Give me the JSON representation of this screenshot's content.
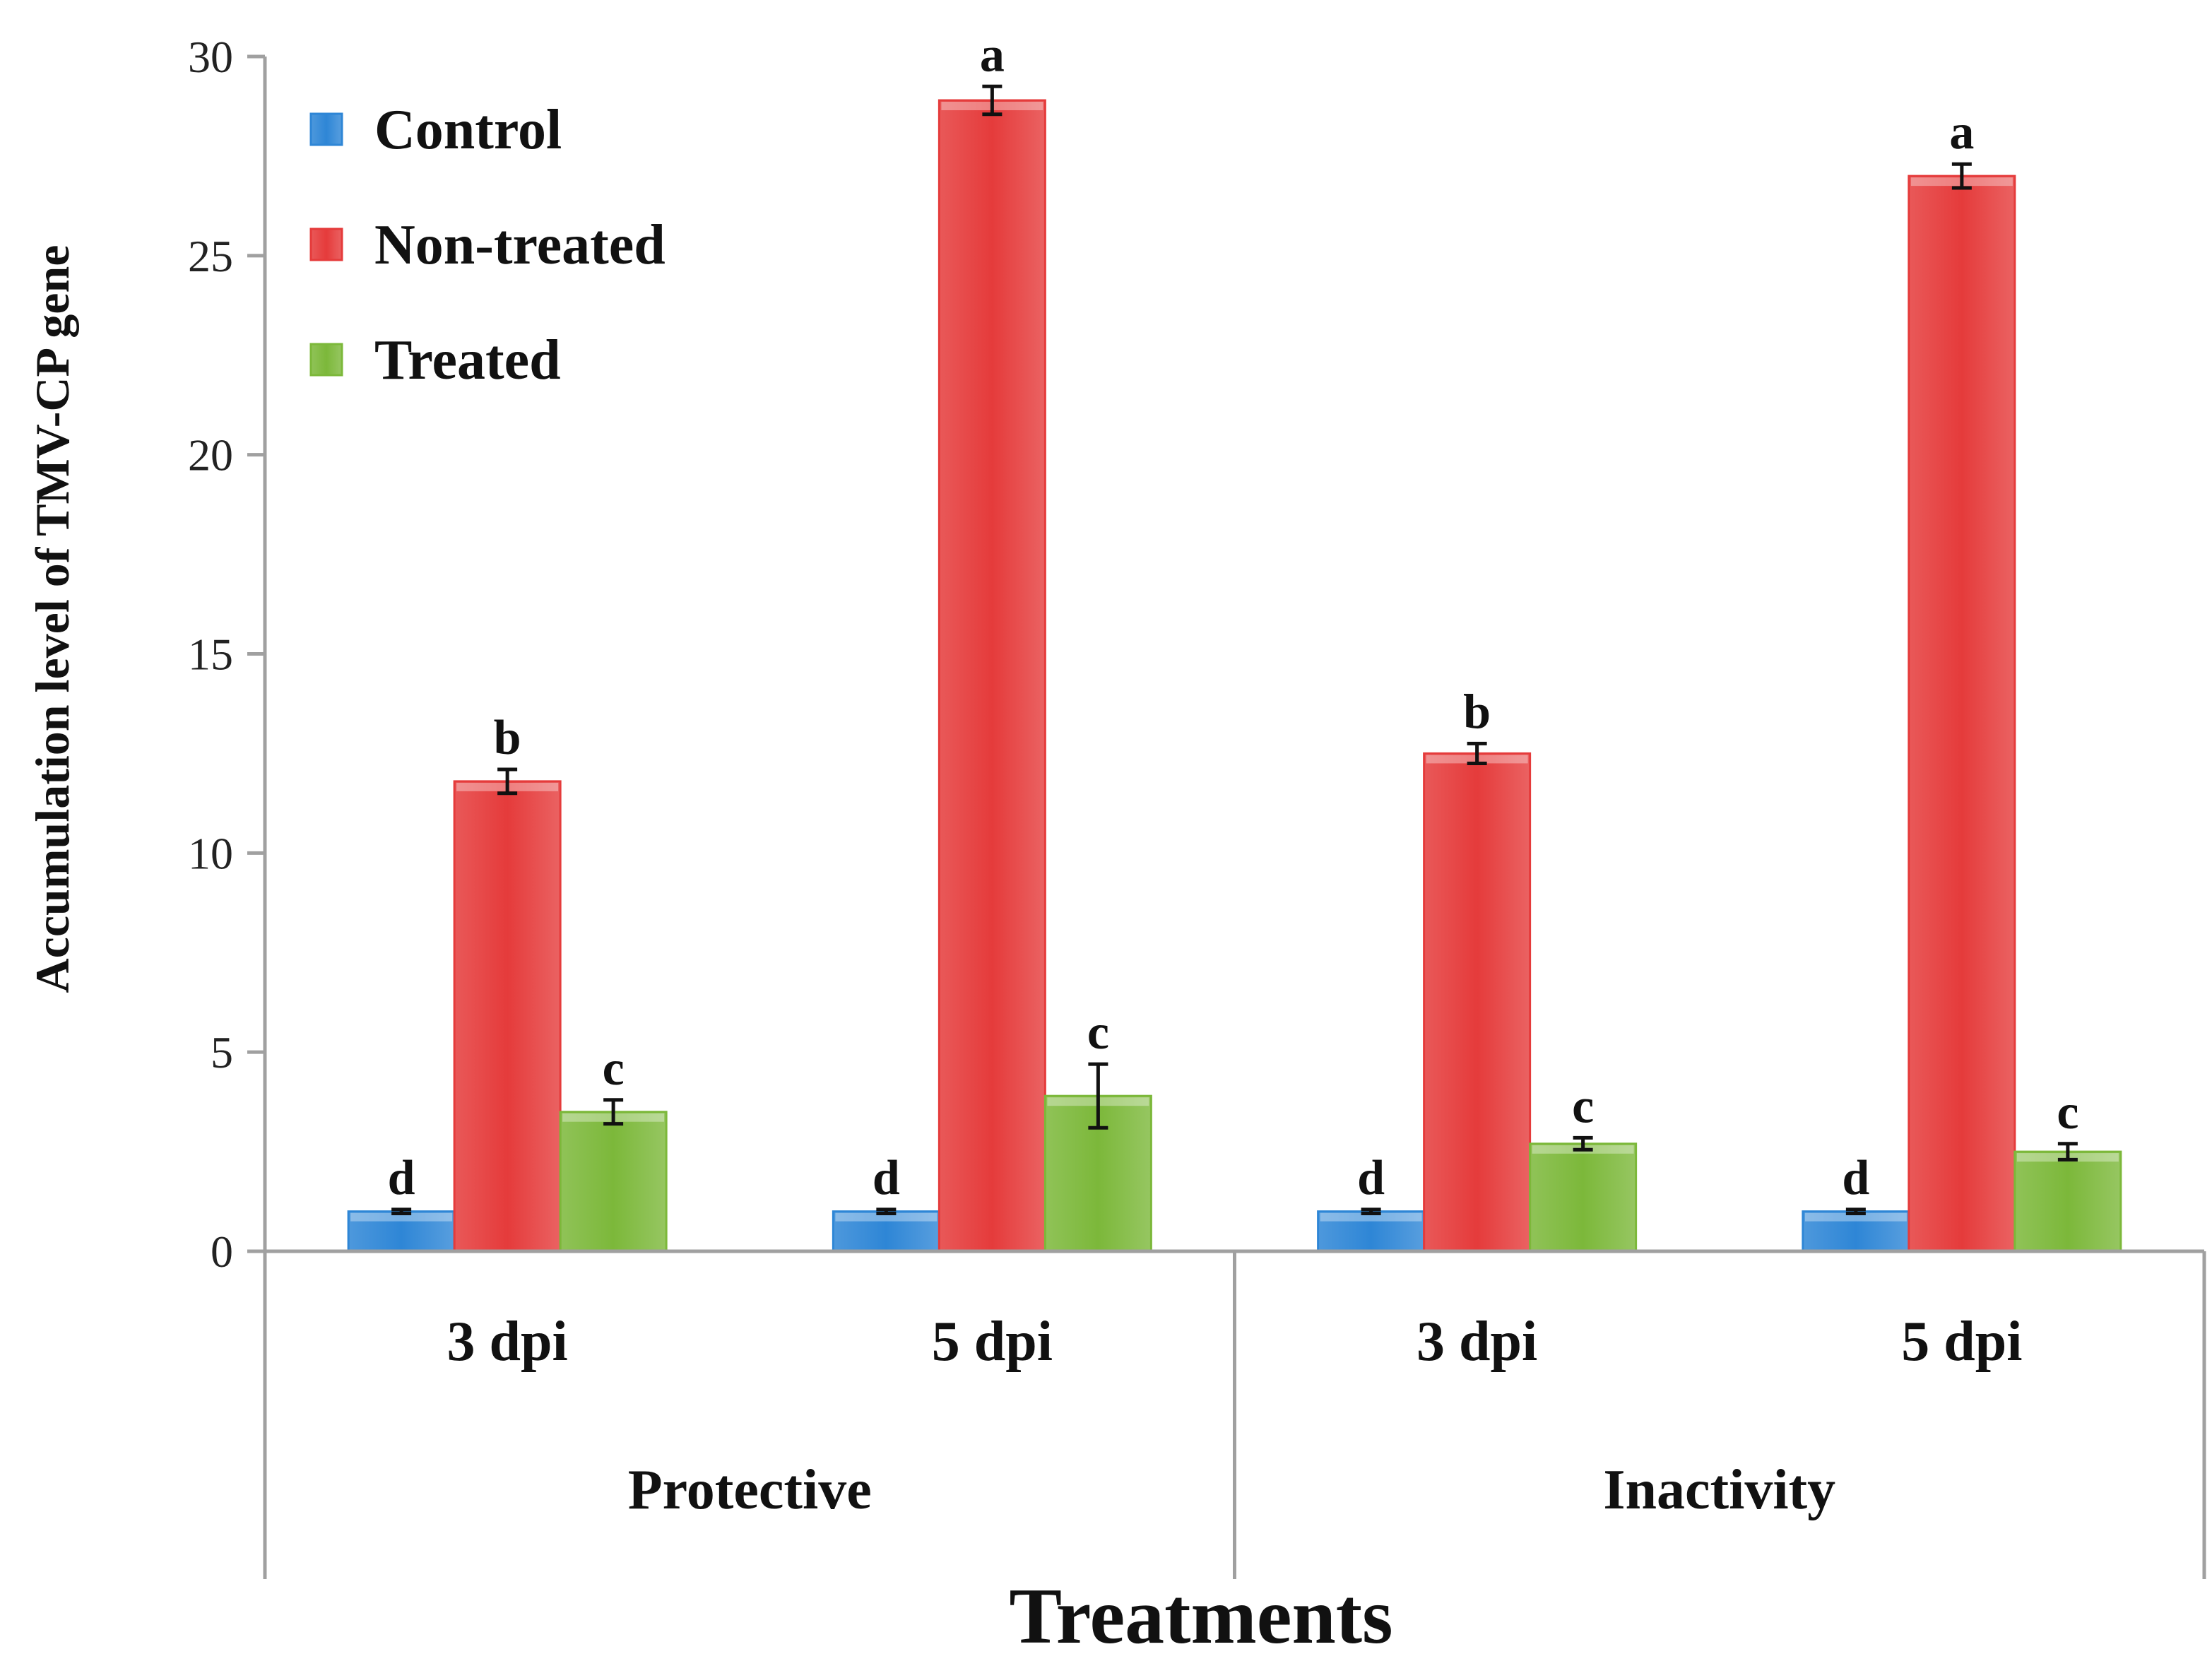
{
  "chart_data": {
    "type": "bar",
    "title": "",
    "xlabel": "Treatments",
    "ylabel": "Accumulation level of TMV-CP gene",
    "ylim": [
      0,
      30
    ],
    "yticks": [
      0,
      5,
      10,
      15,
      20,
      25,
      30
    ],
    "grid": false,
    "legend_position": "top-left",
    "groups": [
      {
        "label": "Protective",
        "categories": [
          "3 dpi",
          "5 dpi"
        ]
      },
      {
        "label": "Inactivity",
        "categories": [
          "3 dpi",
          "5 dpi"
        ]
      }
    ],
    "categories": [
      "3 dpi",
      "5 dpi",
      "3 dpi",
      "5 dpi"
    ],
    "series": [
      {
        "name": "Control",
        "color": "#2e86d6",
        "values": [
          1.0,
          1.0,
          1.0,
          1.0
        ],
        "errors": [
          0.05,
          0.05,
          0.05,
          0.05
        ],
        "letters": [
          "d",
          "d",
          "d",
          "d"
        ]
      },
      {
        "name": "Non-treated",
        "color": "#e53b3b",
        "values": [
          11.8,
          28.9,
          12.5,
          27.0
        ],
        "errors": [
          0.3,
          0.35,
          0.25,
          0.3
        ],
        "letters": [
          "b",
          "a",
          "b",
          "a"
        ]
      },
      {
        "name": "Treated",
        "color": "#7cb83a",
        "values": [
          3.5,
          3.9,
          2.7,
          2.5
        ],
        "errors": [
          0.3,
          0.8,
          0.15,
          0.2
        ],
        "letters": [
          "c",
          "c",
          "c",
          "c"
        ]
      }
    ]
  }
}
